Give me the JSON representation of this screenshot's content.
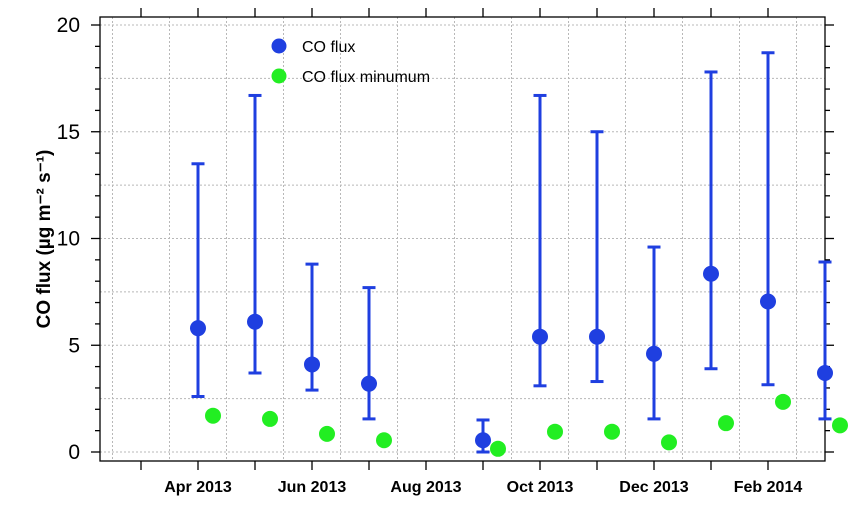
{
  "chart_data": {
    "type": "scatter",
    "ylabel": "CO flux  (µg m⁻² s⁻¹)",
    "ylim": [
      0,
      20
    ],
    "y_ticks": [
      0,
      5,
      10,
      15,
      20
    ],
    "x_tick_labels": [
      "Apr 2013",
      "Jun 2013",
      "Aug 2013",
      "Oct 2013",
      "Dec 2013",
      "Feb 2014"
    ],
    "grid": true,
    "legend_position": "top-center",
    "series": [
      {
        "name": "CO flux",
        "color": "#1f3fe0",
        "months": [
          1,
          2,
          3,
          4,
          6,
          7,
          8,
          9,
          10,
          11,
          12
        ],
        "values": [
          5.8,
          6.1,
          4.1,
          3.2,
          0.55,
          5.4,
          5.4,
          4.6,
          8.35,
          7.05,
          3.7
        ],
        "err_high": [
          13.5,
          16.7,
          8.8,
          7.7,
          1.5,
          16.7,
          15.0,
          9.6,
          17.8,
          18.7,
          8.9
        ],
        "err_low": [
          2.6,
          3.7,
          2.9,
          1.55,
          0.0,
          3.1,
          3.3,
          1.55,
          3.9,
          3.15,
          1.55
        ]
      },
      {
        "name": "CO flux minumum",
        "color": "#22ee22",
        "months": [
          1,
          2,
          3,
          4,
          6,
          7,
          8,
          9,
          10,
          11,
          12
        ],
        "values": [
          1.7,
          1.55,
          0.85,
          0.55,
          0.15,
          0.95,
          0.95,
          0.45,
          1.35,
          2.35,
          1.25
        ]
      }
    ]
  }
}
